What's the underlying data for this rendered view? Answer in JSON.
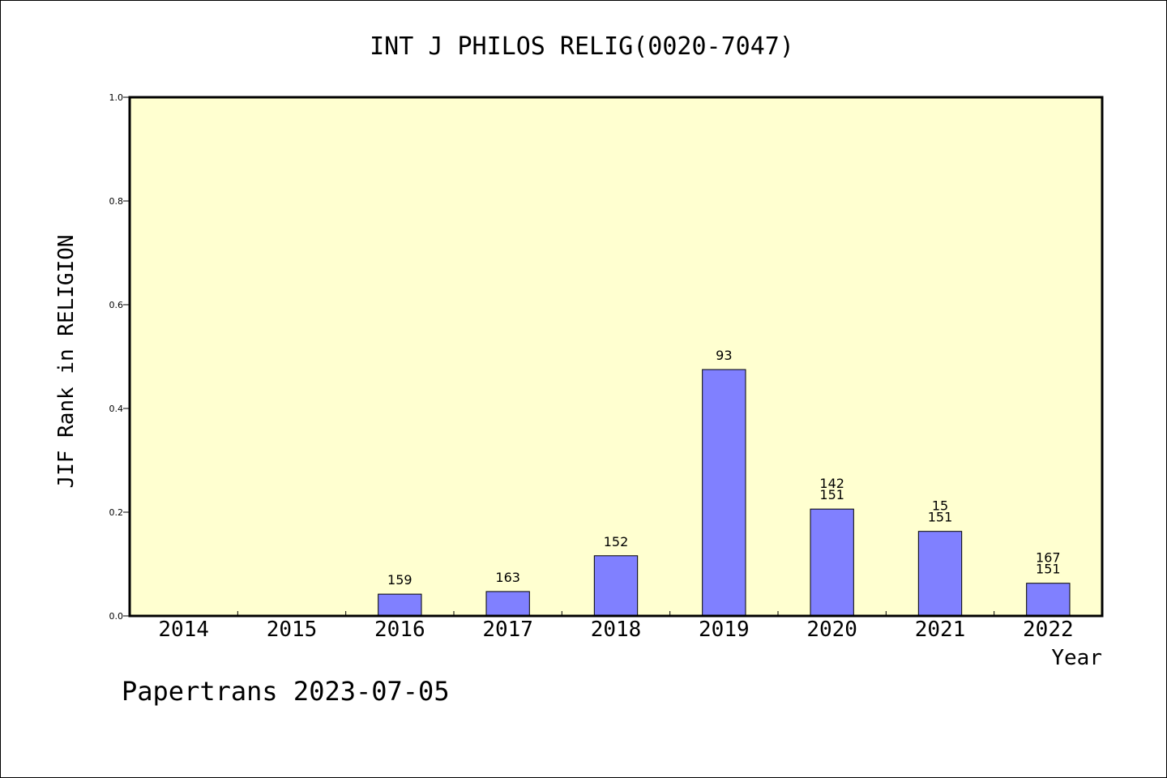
{
  "chart_data": {
    "type": "bar",
    "title": "INT J PHILOS RELIG(0020-7047)",
    "xlabel": "Year",
    "ylabel": "JIF Rank in RELIGION",
    "ylim": [
      0,
      1.0
    ],
    "yticks": [
      "0.0",
      "0.2",
      "0.4",
      "0.6",
      "0.8",
      "1.0"
    ],
    "grid": false,
    "categories": [
      "2014",
      "2015",
      "2016",
      "2017",
      "2018",
      "2019",
      "2020",
      "2021",
      "2022"
    ],
    "values": [
      null,
      null,
      0.042,
      0.047,
      0.116,
      0.475,
      0.206,
      0.163,
      0.063
    ],
    "labels": [
      [],
      [],
      [
        "159"
      ],
      [
        "163"
      ],
      [
        "152"
      ],
      [
        "93"
      ],
      [
        "142",
        "151"
      ],
      [
        "15",
        "151"
      ],
      [
        "167",
        "151"
      ]
    ],
    "colors": {
      "plot_bg": "#ffffd0",
      "bar_fill": "#8080ff",
      "bar_stroke": "#000000"
    }
  },
  "footer": {
    "watermark": "Papertrans 2023-07-05"
  }
}
